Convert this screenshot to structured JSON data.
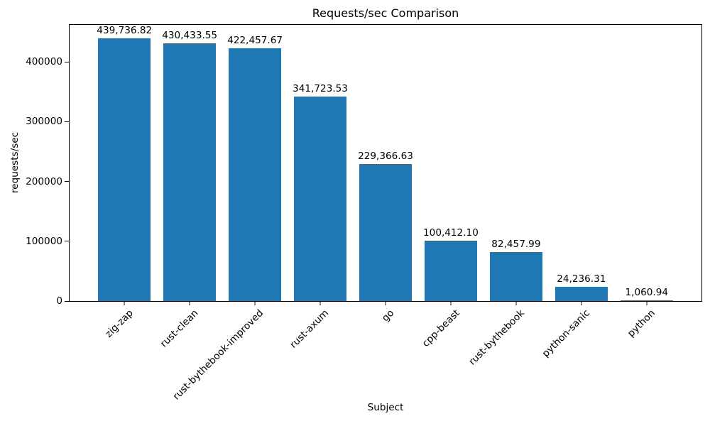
{
  "chart_data": {
    "type": "bar",
    "title": "Requests/sec Comparison",
    "xlabel": "Subject",
    "ylabel": "requests/sec",
    "categories": [
      "zig-zap",
      "rust-clean",
      "rust-bythebook-improved",
      "rust-axum",
      "go",
      "cpp-beast",
      "rust-bythebook",
      "python-sanic",
      "python"
    ],
    "values": [
      439736.82,
      430433.55,
      422457.67,
      341723.53,
      229366.63,
      100412.1,
      82457.99,
      24236.31,
      1060.94
    ],
    "value_labels": [
      "439,736.82",
      "430,433.55",
      "422,457.67",
      "341,723.53",
      "229,366.63",
      "100,412.10",
      "82,457.99",
      "24,236.31",
      "1,060.94"
    ],
    "yticks": [
      0,
      100000,
      200000,
      300000,
      400000
    ],
    "ylim": [
      0,
      461723.66
    ],
    "bar_color": "#1f77b4",
    "bar_width_fraction": 0.8,
    "x_margin_fraction": 0.05,
    "grid": false,
    "legend_position": "none"
  }
}
